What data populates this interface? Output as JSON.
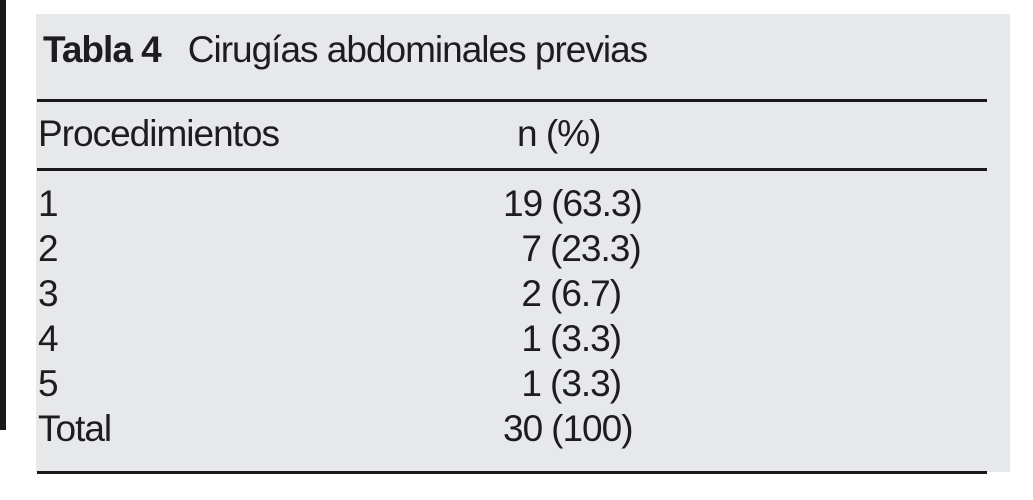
{
  "table": {
    "label": "Tabla 4",
    "caption": "Cirugías abdominales previas",
    "columns": [
      "Procedimientos",
      "n (%)"
    ],
    "rows": [
      {
        "procedure": "1",
        "n": "19",
        "pct": "(63.3)"
      },
      {
        "procedure": "2",
        "n": "7",
        "pct": "(23.3)"
      },
      {
        "procedure": "3",
        "n": "2",
        "pct": "(6.7)"
      },
      {
        "procedure": "4",
        "n": "1",
        "pct": "(3.3)"
      },
      {
        "procedure": "5",
        "n": "1",
        "pct": "(3.3)"
      },
      {
        "procedure": "Total",
        "n": "30",
        "pct": "(100)"
      }
    ],
    "colors": {
      "panel_background": "#e6e8ea",
      "text": "#1d1d1f",
      "rule": "#1a1a1c",
      "page_background": "#ffffff"
    }
  },
  "chart_data": {
    "type": "table",
    "title": "Tabla 4 — Cirugías abdominales previas",
    "columns": [
      "Procedimientos",
      "n (%)"
    ],
    "rows": [
      [
        "1",
        "19 (63.3)"
      ],
      [
        "2",
        "7 (23.3)"
      ],
      [
        "3",
        "2 (6.7)"
      ],
      [
        "4",
        "1 (3.3)"
      ],
      [
        "5",
        "1 (3.3)"
      ],
      [
        "Total",
        "30 (100)"
      ]
    ],
    "total_n": 30
  }
}
